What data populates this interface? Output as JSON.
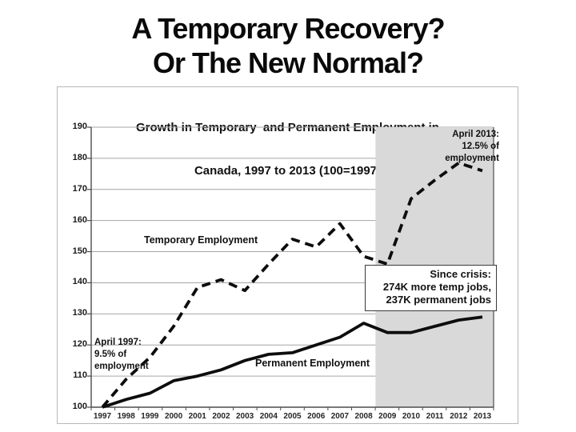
{
  "slide": {
    "title_line1": "A Temporary Recovery?",
    "title_line2": "Or The New Normal?"
  },
  "chart": {
    "title_line1": "Growth in Temporary  and Permanent Employment in",
    "title_line2": "Canada, 1997 to 2013 (100=1997)",
    "series_labels": {
      "temporary": "Temporary Employment",
      "permanent": "Permanent Employment"
    },
    "annotations": {
      "april_2013": [
        "April 2013:",
        "12.5% of",
        "employment"
      ],
      "april_1997": [
        "April 1997:",
        "9.5% of",
        "employment"
      ],
      "since_crisis": [
        "Since crisis:",
        "274K more temp jobs,",
        "237K permanent jobs"
      ]
    },
    "colors": {
      "line": "#0d0d0d",
      "gridline": "#a6a6a6",
      "axis": "#4d4d4d",
      "shaded_region": "#d9d9d9",
      "title_text": "#0a0a0a"
    }
  },
  "chart_data": {
    "type": "line",
    "categories": [
      1997,
      1998,
      1999,
      2000,
      2001,
      2002,
      2003,
      2004,
      2005,
      2006,
      2007,
      2008,
      2009,
      2010,
      2011,
      2012,
      2013
    ],
    "series": [
      {
        "name": "Temporary Employment",
        "style": "dashed",
        "values": [
          100,
          109,
          116,
          126,
          138.5,
          141,
          137.5,
          146,
          154,
          151.5,
          159,
          148.5,
          146,
          167,
          173,
          178.5,
          176
        ]
      },
      {
        "name": "Permanent Employment",
        "style": "solid",
        "values": [
          100,
          102.5,
          104.5,
          108.5,
          110,
          112,
          115,
          117,
          117.5,
          120,
          122.5,
          127,
          124,
          124,
          126,
          128,
          129
        ]
      }
    ],
    "title": "Growth in Temporary and Permanent Employment in Canada, 1997 to 2013 (100=1997)",
    "xlabel": "",
    "ylabel": "",
    "ylim": [
      100,
      190
    ],
    "ytick_step": 10,
    "grid": true,
    "shaded_x_range": [
      2008.5,
      2013.5
    ],
    "legend_position": "inline-labels"
  }
}
